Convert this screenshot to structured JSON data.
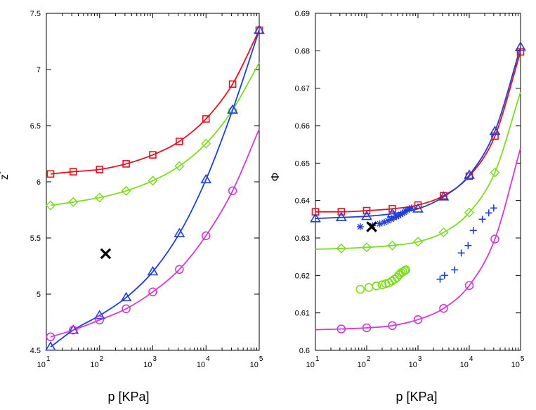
{
  "colors": {
    "red": "#e8101e",
    "green": "#7ddc1f",
    "blue": "#1f3fd6",
    "magenta": "#d23ad6",
    "black": "#000000"
  },
  "chart_data": [
    {
      "type": "line",
      "xscale": "log",
      "xlabel": "p [KPa]",
      "ylabel": "z",
      "ylabel_sup": "*",
      "xlim": [
        10,
        100000
      ],
      "ylim": [
        4.5,
        7.5
      ],
      "x_ticks": [
        {
          "value": 10,
          "base": "10",
          "exp": "1"
        },
        {
          "value": 100,
          "base": "10",
          "exp": "2"
        },
        {
          "value": 1000,
          "base": "10",
          "exp": "3"
        },
        {
          "value": 10000,
          "base": "10",
          "exp": "4"
        },
        {
          "value": 100000,
          "base": "10",
          "exp": "5"
        }
      ],
      "y_ticks": [
        "4.5",
        "5",
        "5.5",
        "6",
        "6.5",
        "7",
        "7.5"
      ],
      "series": [
        {
          "name": "squares",
          "color": "red",
          "marker": "square",
          "x": [
            12,
            32,
            100,
            316,
            1000,
            3162,
            10000,
            31623,
            100000
          ],
          "curve_y": [
            6.07,
            6.09,
            6.11,
            6.16,
            6.24,
            6.36,
            6.56,
            6.87,
            7.35
          ],
          "marker_x": [
            12,
            32,
            100,
            316,
            1000,
            3162,
            10000,
            31623,
            100000
          ],
          "marker_y": [
            6.07,
            6.09,
            6.11,
            6.16,
            6.24,
            6.36,
            6.56,
            6.87,
            7.35
          ]
        },
        {
          "name": "diamonds",
          "color": "green",
          "marker": "diamond",
          "x": [
            12,
            32,
            100,
            316,
            1000,
            3162,
            10000,
            31623,
            100000
          ],
          "curve_y": [
            5.79,
            5.82,
            5.86,
            5.92,
            6.01,
            6.14,
            6.34,
            6.64,
            7.06
          ],
          "marker_x": [
            12,
            32,
            100,
            316,
            1000,
            3162,
            10000,
            31623
          ],
          "marker_y": [
            5.79,
            5.82,
            5.86,
            5.92,
            6.01,
            6.14,
            6.34,
            6.64
          ]
        },
        {
          "name": "triangles",
          "color": "blue",
          "marker": "triangle",
          "x": [
            12,
            32,
            100,
            316,
            1000,
            3162,
            10000,
            31623,
            100000
          ],
          "curve_y": [
            4.53,
            4.68,
            4.81,
            4.97,
            5.2,
            5.54,
            6.02,
            6.64,
            7.35
          ],
          "marker_x": [
            12,
            32,
            100,
            316,
            1000,
            3162,
            10000,
            31623,
            100000
          ],
          "marker_y": [
            4.53,
            4.68,
            4.81,
            4.97,
            5.2,
            5.54,
            6.02,
            6.64,
            7.35
          ]
        },
        {
          "name": "circles",
          "color": "magenta",
          "marker": "circle",
          "x": [
            12,
            32,
            100,
            316,
            1000,
            3162,
            10000,
            31623,
            100000
          ],
          "curve_y": [
            4.62,
            4.68,
            4.77,
            4.87,
            5.02,
            5.22,
            5.52,
            5.92,
            6.47
          ],
          "marker_x": [
            12,
            32,
            100,
            316,
            1000,
            3162,
            10000,
            31623
          ],
          "marker_y": [
            4.62,
            4.68,
            4.77,
            4.87,
            5.02,
            5.22,
            5.52,
            5.92
          ]
        }
      ],
      "points": [
        {
          "name": "black-cross",
          "color": "black",
          "marker": "bigx",
          "x": [
            130
          ],
          "y": [
            5.36
          ]
        }
      ]
    },
    {
      "type": "line",
      "xscale": "log",
      "xlabel": "p [KPa]",
      "ylabel": "Φ",
      "ylabel_sup": "",
      "xlim": [
        10,
        100000
      ],
      "ylim": [
        0.6,
        0.69
      ],
      "x_ticks": [
        {
          "value": 10,
          "base": "10",
          "exp": "1"
        },
        {
          "value": 100,
          "base": "10",
          "exp": "2"
        },
        {
          "value": 1000,
          "base": "10",
          "exp": "3"
        },
        {
          "value": 10000,
          "base": "10",
          "exp": "4"
        },
        {
          "value": 100000,
          "base": "10",
          "exp": "5"
        }
      ],
      "y_ticks": [
        "0.6",
        "0.61",
        "0.62",
        "0.63",
        "0.64",
        "0.65",
        "0.66",
        "0.67",
        "0.68",
        "0.69"
      ],
      "series": [
        {
          "name": "squares",
          "color": "red",
          "marker": "square",
          "x": [
            10,
            32,
            100,
            316,
            1000,
            3162,
            10000,
            31623,
            100000
          ],
          "curve_y": [
            0.637,
            0.637,
            0.6373,
            0.6378,
            0.6388,
            0.6413,
            0.6465,
            0.6572,
            0.6797
          ],
          "marker_x": [
            10,
            32,
            100,
            316,
            1000,
            3162,
            10000,
            31623,
            100000
          ],
          "marker_y": [
            0.637,
            0.637,
            0.6373,
            0.6378,
            0.6388,
            0.6413,
            0.6465,
            0.6572,
            0.6797
          ]
        },
        {
          "name": "triangles",
          "color": "blue",
          "marker": "triangle",
          "x": [
            10,
            32,
            100,
            316,
            1000,
            3162,
            10000,
            31623,
            100000
          ],
          "curve_y": [
            0.6352,
            0.6355,
            0.6358,
            0.6365,
            0.6378,
            0.641,
            0.6468,
            0.6585,
            0.681
          ],
          "marker_x": [
            10,
            32,
            100,
            316,
            1000,
            3162,
            10000,
            31623,
            100000
          ],
          "marker_y": [
            0.6352,
            0.6355,
            0.6358,
            0.6365,
            0.6378,
            0.641,
            0.6468,
            0.6585,
            0.681
          ]
        },
        {
          "name": "diamonds",
          "color": "green",
          "marker": "diamond",
          "x": [
            10,
            32,
            100,
            316,
            1000,
            3162,
            10000,
            31623,
            100000
          ],
          "curve_y": [
            0.627,
            0.6272,
            0.6275,
            0.628,
            0.629,
            0.6315,
            0.6368,
            0.6475,
            0.669
          ],
          "marker_x": [
            32,
            100,
            316,
            1000,
            3162,
            10000,
            31623
          ],
          "marker_y": [
            0.6272,
            0.6275,
            0.628,
            0.629,
            0.6315,
            0.6368,
            0.6475
          ]
        },
        {
          "name": "circles",
          "color": "magenta",
          "marker": "circle",
          "x": [
            10,
            32,
            100,
            316,
            1000,
            3162,
            10000,
            31623,
            100000
          ],
          "curve_y": [
            0.6055,
            0.6057,
            0.606,
            0.6066,
            0.6082,
            0.6112,
            0.6173,
            0.6297,
            0.654
          ],
          "marker_x": [
            32,
            100,
            316,
            1000,
            3162,
            10000,
            31623
          ],
          "marker_y": [
            0.6057,
            0.606,
            0.6066,
            0.6082,
            0.6112,
            0.6173,
            0.6297
          ]
        }
      ],
      "points": [
        {
          "name": "green-open-circles",
          "color": "green",
          "marker": "circle",
          "x": [
            75,
            110,
            155,
            200,
            235,
            270,
            310,
            350,
            390,
            430,
            470,
            510,
            550,
            580
          ],
          "y": [
            0.6163,
            0.6168,
            0.6172,
            0.6175,
            0.6178,
            0.618,
            0.6185,
            0.619,
            0.6195,
            0.6202,
            0.6207,
            0.621,
            0.6213,
            0.6215
          ]
        },
        {
          "name": "blue-asterisks",
          "color": "blue",
          "marker": "asterisk",
          "x": [
            75,
            130,
            180,
            220,
            260,
            300,
            340,
            380,
            420,
            460,
            500,
            540,
            580,
            620,
            680,
            750
          ],
          "y": [
            0.633,
            0.6333,
            0.6338,
            0.6342,
            0.6346,
            0.635,
            0.6354,
            0.6357,
            0.636,
            0.6363,
            0.6366,
            0.6369,
            0.6372,
            0.6375,
            0.6378,
            0.638
          ]
        },
        {
          "name": "blue-plus",
          "color": "blue",
          "marker": "plus",
          "x": [
            2700,
            3300,
            5200,
            7000,
            9500,
            12000,
            18000,
            24000,
            30000
          ],
          "y": [
            0.619,
            0.62,
            0.6215,
            0.626,
            0.628,
            0.632,
            0.635,
            0.6367,
            0.638
          ]
        },
        {
          "name": "black-cross",
          "color": "black",
          "marker": "bigx",
          "x": [
            125
          ],
          "y": [
            0.633
          ]
        }
      ]
    }
  ]
}
